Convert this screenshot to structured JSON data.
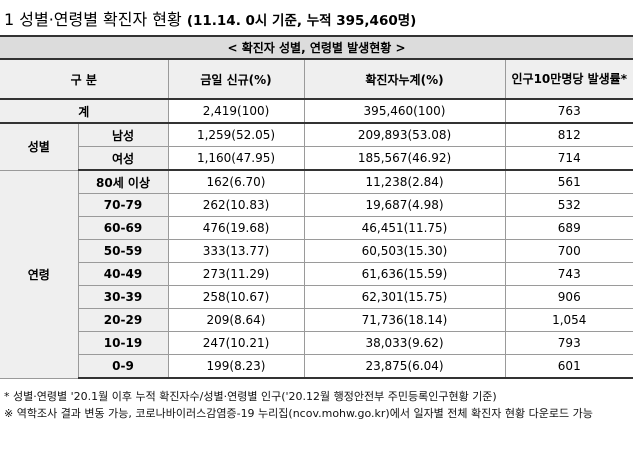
{
  "title": {
    "main": "1 성별·연령별 확진자 현황",
    "sub": "(11.14. 0시 기준, 누적 395,460명)"
  },
  "table": {
    "caption": "< 확진자 성별, 연령별 발생현황 >",
    "headers": {
      "category": "구 분",
      "today": "금일 신규(%)",
      "cumulative": "확진자누계(%)",
      "rate": "인구10만명당 발생률*"
    },
    "total": {
      "label": "계",
      "today": "2,419(100)",
      "cumulative": "395,460(100)",
      "rate": "763"
    },
    "sex": {
      "label": "성별",
      "rows": [
        {
          "label": "남성",
          "today": "1,259(52.05)",
          "cumulative": "209,893(53.08)",
          "rate": "812"
        },
        {
          "label": "여성",
          "today": "1,160(47.95)",
          "cumulative": "185,567(46.92)",
          "rate": "714"
        }
      ]
    },
    "age": {
      "label": "연령",
      "rows": [
        {
          "label": "80세 이상",
          "today": "162(6.70)",
          "cumulative": "11,238(2.84)",
          "rate": "561"
        },
        {
          "label": "70-79",
          "today": "262(10.83)",
          "cumulative": "19,687(4.98)",
          "rate": "532"
        },
        {
          "label": "60-69",
          "today": "476(19.68)",
          "cumulative": "46,451(11.75)",
          "rate": "689"
        },
        {
          "label": "50-59",
          "today": "333(13.77)",
          "cumulative": "60,503(15.30)",
          "rate": "700"
        },
        {
          "label": "40-49",
          "today": "273(11.29)",
          "cumulative": "61,636(15.59)",
          "rate": "743"
        },
        {
          "label": "30-39",
          "today": "258(10.67)",
          "cumulative": "62,301(15.75)",
          "rate": "906"
        },
        {
          "label": "20-29",
          "today": "209(8.64)",
          "cumulative": "71,736(18.14)",
          "rate": "1,054"
        },
        {
          "label": "10-19",
          "today": "247(10.21)",
          "cumulative": "38,033(9.62)",
          "rate": "793"
        },
        {
          "label": "0-9",
          "today": "199(8.23)",
          "cumulative": "23,875(6.04)",
          "rate": "601"
        }
      ]
    }
  },
  "notes": {
    "note1": "* 성별·연령별 '20.1월 이후 누적 확진자수/성별·연령별 인구('20.12월 행정안전부 주민등록인구현황 기준)",
    "note2": "※ 역학조사 결과 변동 가능, 코로나바이러스감염증-19 누리집(ncov.mohw.go.kr)에서 일자별 전체 확진자 현황 다운로드 가능"
  }
}
